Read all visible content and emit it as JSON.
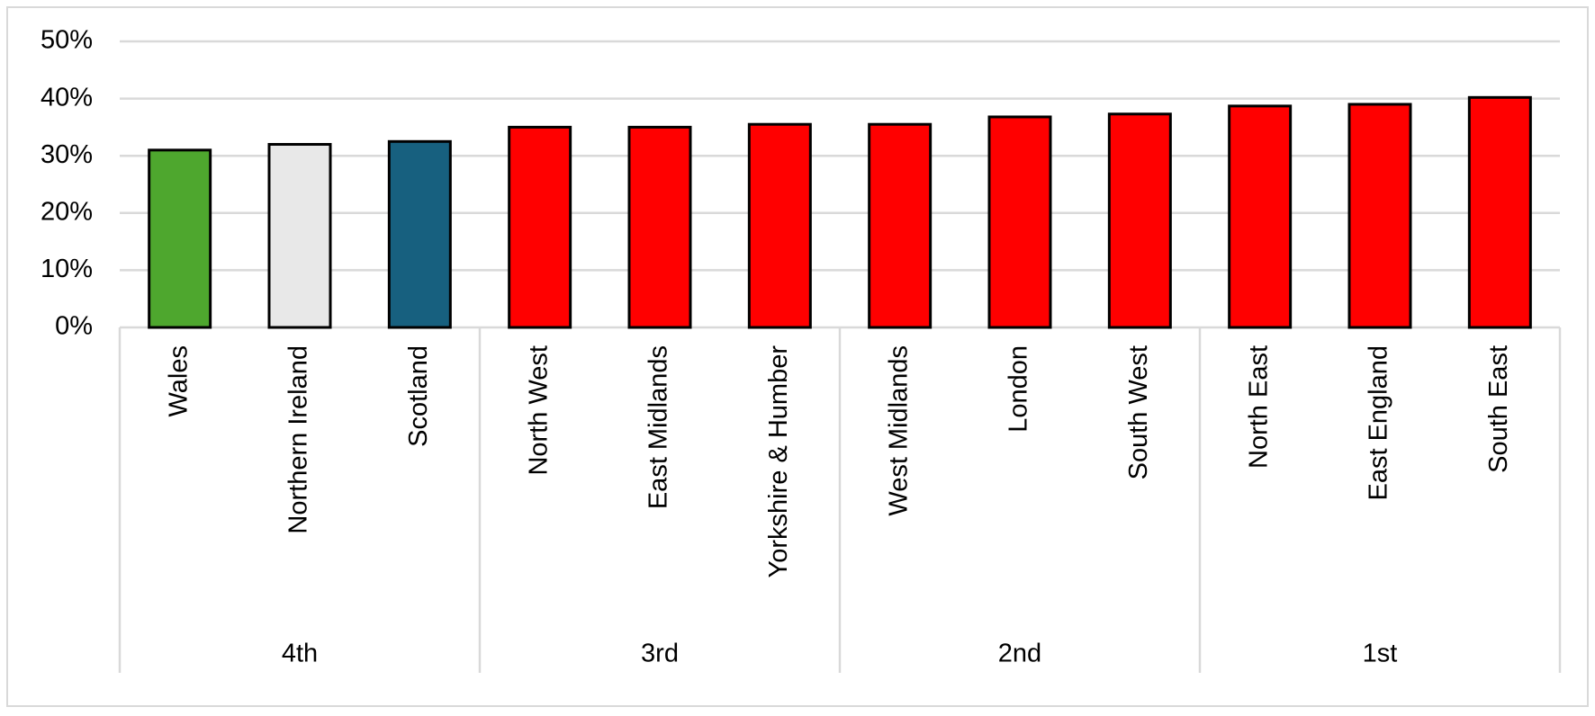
{
  "chart_data": {
    "type": "bar",
    "categories": [
      "Wales",
      "Northern Ireland",
      "Scotland",
      "North West",
      "East Midlands",
      "Yorkshire & Humber",
      "West Midlands",
      "London",
      "South West",
      "North East",
      "East England",
      "South East"
    ],
    "values": [
      31,
      32,
      32.5,
      35,
      35,
      35.5,
      35.5,
      36.8,
      37.3,
      38.7,
      39,
      40.2
    ],
    "colors": [
      "#4ea72e",
      "#e8e8e8",
      "#17607f",
      "#ff0000",
      "#ff0000",
      "#ff0000",
      "#ff0000",
      "#ff0000",
      "#ff0000",
      "#ff0000",
      "#ff0000",
      "#ff0000"
    ],
    "groups": [
      "4th",
      "3rd",
      "2nd",
      "1st"
    ],
    "ylim": [
      0,
      50
    ],
    "yticks": [
      {
        "value": 0,
        "label": "0%"
      },
      {
        "value": 10,
        "label": "10%"
      },
      {
        "value": 20,
        "label": "20%"
      },
      {
        "value": 30,
        "label": "30%"
      },
      {
        "value": 40,
        "label": "40%"
      },
      {
        "value": 50,
        "label": "50%"
      }
    ],
    "grid": true
  }
}
